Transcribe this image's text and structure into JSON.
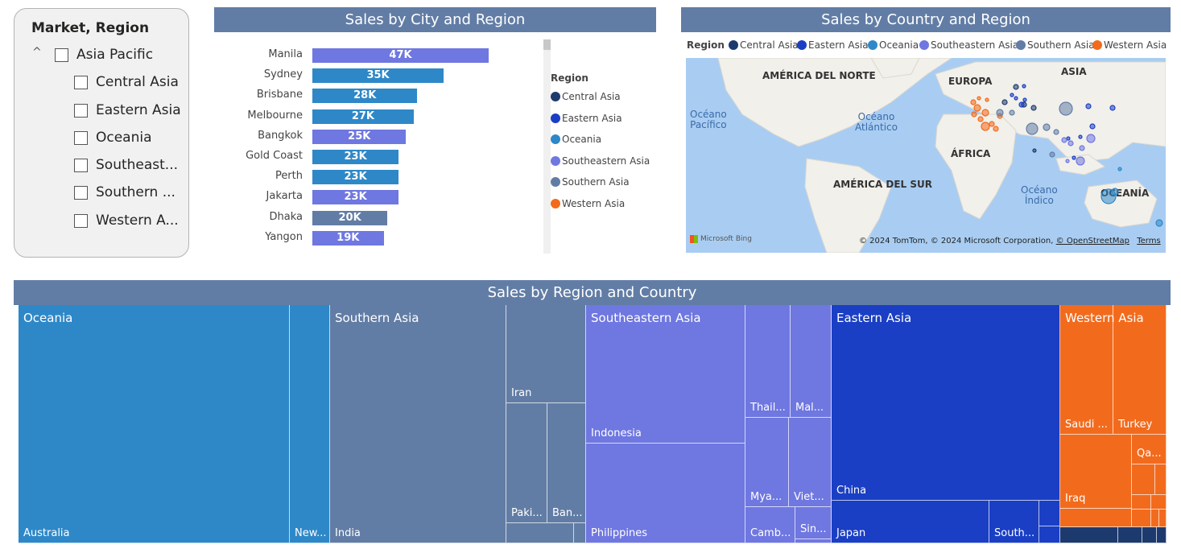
{
  "slicer": {
    "title": "Market, Region",
    "chevron": "^",
    "parent": "Asia Pacific",
    "items": [
      "Central Asia",
      "Eastern Asia",
      "Oceania",
      "Southeast...",
      "Southern ...",
      "Western A..."
    ]
  },
  "bar_chart": {
    "title": "Sales by City and Region",
    "legend_title": "Region"
  },
  "map": {
    "title": "Sales by Country and Region",
    "legend_title": "Region",
    "labels": {
      "north_america": "AMÉRICA DEL NORTE",
      "europe": "EUROPA",
      "asia": "ASIA",
      "africa": "ÁFRICA",
      "south_america": "AMÉRICA DEL SUR",
      "oceania": "OCEANÍA",
      "pacific_1": "Océano",
      "pacific_2": "Pacífico",
      "atlantic_1": "Océano",
      "atlantic_2": "Atlántico",
      "indian_1": "Océano",
      "indian_2": "Índico"
    },
    "bing": "Microsoft Bing",
    "copyright": "© 2024 TomTom, © 2024 Microsoft Corporation,",
    "osm_link": "© OpenStreetMap",
    "terms_link": "Terms"
  },
  "treemap": {
    "title": "Sales by Region and Country"
  },
  "colors": {
    "Central Asia": "#1d3a6e",
    "Eastern Asia": "#1a3fc4",
    "Oceania": "#2e88c8",
    "Southeastern Asia": "#6f77e0",
    "Southern Asia": "#627da5",
    "Western Asia": "#f26b1d"
  },
  "chart_data": [
    {
      "type": "bar",
      "title": "Sales by City and Region",
      "orientation": "horizontal",
      "categories": [
        "Manila",
        "Sydney",
        "Brisbane",
        "Melbourne",
        "Bangkok",
        "Gold Coast",
        "Perth",
        "Jakarta",
        "Dhaka",
        "Yangon"
      ],
      "values": [
        47000,
        35000,
        28000,
        27000,
        25000,
        23000,
        23000,
        23000,
        20000,
        19000
      ],
      "data_labels": [
        "47K",
        "35K",
        "28K",
        "27K",
        "25K",
        "23K",
        "23K",
        "23K",
        "20K",
        "19K"
      ],
      "bar_regions": [
        "Southeastern Asia",
        "Oceania",
        "Oceania",
        "Oceania",
        "Southeastern Asia",
        "Oceania",
        "Oceania",
        "Southeastern Asia",
        "Southern Asia",
        "Southeastern Asia"
      ],
      "legend": [
        "Central Asia",
        "Eastern Asia",
        "Oceania",
        "Southeastern Asia",
        "Southern Asia",
        "Western Asia"
      ],
      "legend_placement": "right"
    },
    {
      "type": "treemap",
      "title": "Sales by Region and Country",
      "groups": [
        {
          "name": "Oceania",
          "children": [
            "Australia",
            "New..."
          ]
        },
        {
          "name": "Southern Asia",
          "children": [
            "India",
            "Iran",
            "Paki...",
            "Ban..."
          ]
        },
        {
          "name": "Southeastern Asia",
          "children": [
            "Indonesia",
            "Philippines",
            "Thail...",
            "Mal...",
            "Mya...",
            "Viet...",
            "Camb...",
            "Sin..."
          ]
        },
        {
          "name": "Eastern Asia",
          "children": [
            "China",
            "Japan",
            "South..."
          ]
        },
        {
          "name": "Western Asia",
          "children": [
            "Saudi ...",
            "Turkey",
            "Qa...",
            "Iraq"
          ]
        }
      ]
    }
  ]
}
